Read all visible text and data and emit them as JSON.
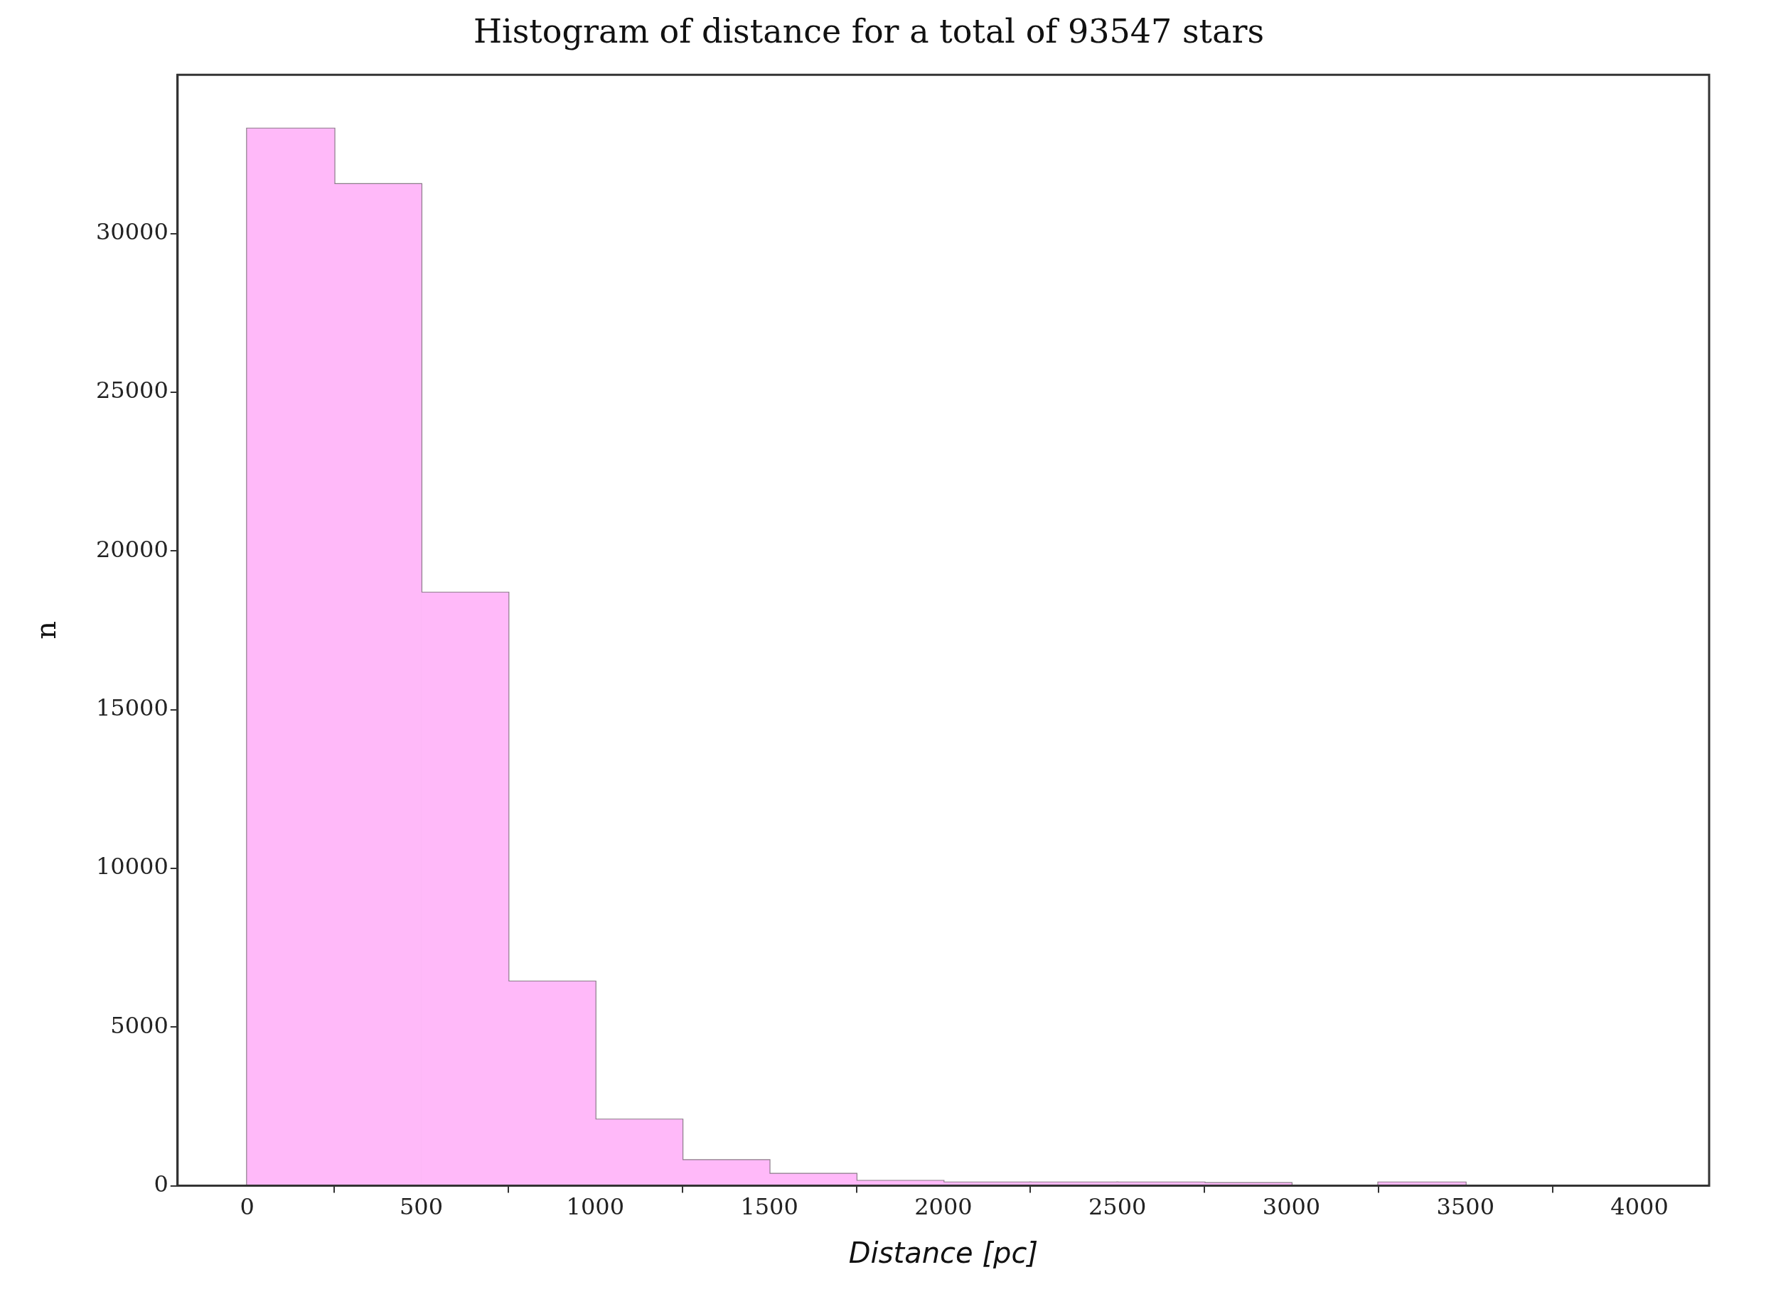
{
  "chart_data": {
    "type": "histogram",
    "title": "Histogram of distance for a total of 93547 stars",
    "xlabel": "Distance [pc]",
    "ylabel": "n",
    "bins": [
      0,
      250,
      500,
      750,
      1000,
      1250,
      1500,
      1750,
      2000,
      2250,
      2500,
      2750,
      3000,
      3250,
      3500,
      3750,
      4000
    ],
    "values": [
      33300,
      31550,
      18680,
      6430,
      2080,
      800,
      370,
      150,
      100,
      100,
      100,
      80,
      0,
      100,
      0,
      0
    ],
    "color": "#ffb9f9",
    "xlim": [
      -200,
      4200
    ],
    "ylim": [
      0,
      35000
    ],
    "xticks": [
      0,
      500,
      1000,
      1500,
      2000,
      2500,
      3000,
      3500,
      4000
    ],
    "yticks": [
      0,
      5000,
      10000,
      15000,
      20000,
      25000,
      30000
    ],
    "grid": false
  }
}
